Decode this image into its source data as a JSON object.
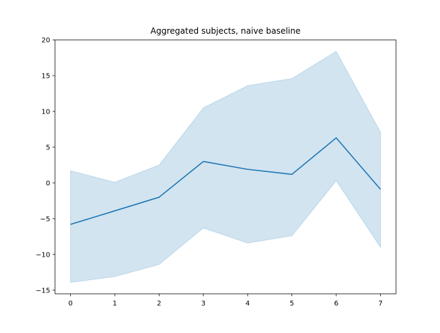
{
  "chart_data": {
    "type": "line",
    "title": "Aggregated subjects, naive baseline",
    "xlabel": "",
    "ylabel": "",
    "x": [
      0,
      1,
      2,
      3,
      4,
      5,
      6,
      7
    ],
    "series": [
      {
        "values": [
          -5.8,
          -3.9,
          -2.0,
          3.0,
          1.9,
          1.2,
          6.3,
          -0.9
        ],
        "lower": [
          -13.9,
          -13.1,
          -11.4,
          -6.3,
          -8.4,
          -7.4,
          0.3,
          -9.0
        ],
        "upper": [
          1.7,
          0.1,
          2.5,
          10.5,
          13.6,
          14.6,
          18.4,
          7.1
        ]
      }
    ],
    "xticks": [
      0,
      1,
      2,
      3,
      4,
      5,
      6,
      7
    ],
    "yticks": [
      -15,
      -10,
      -5,
      0,
      5,
      10,
      15,
      20
    ],
    "xlim": [
      -0.35,
      7.35
    ],
    "ylim": [
      -15.5,
      20.0
    ],
    "grid": false,
    "legend": "none",
    "colors": {
      "line": "#1f77b4",
      "band": "#1f77b4"
    }
  }
}
